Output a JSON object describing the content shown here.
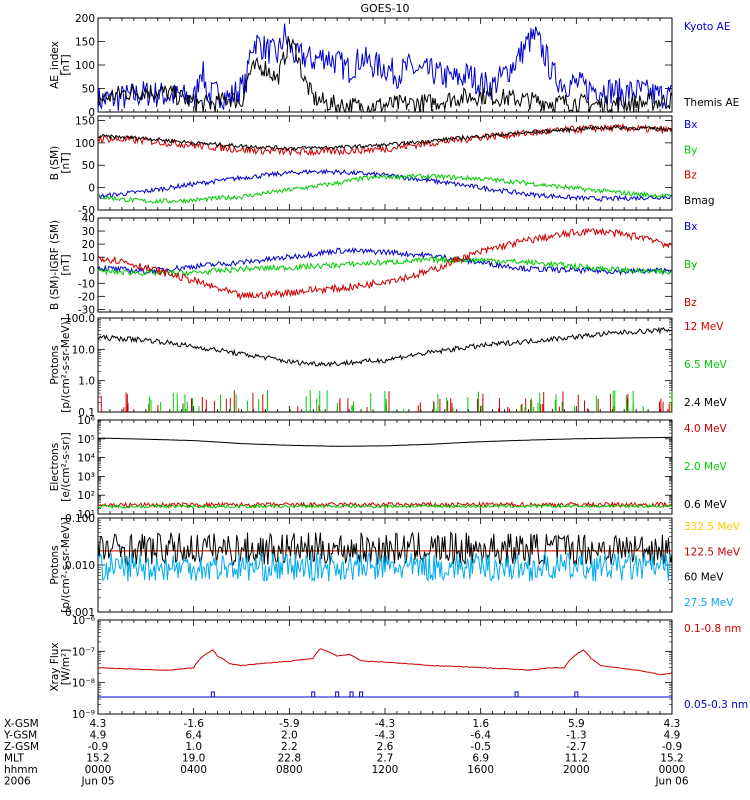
{
  "title": "GOES-10",
  "chart_data": [
    {
      "type": "line",
      "ylabel_lines": [
        "AE_index",
        "[nT]"
      ],
      "yscale": "linear",
      "ylim": [
        0,
        200
      ],
      "yticks": [
        0,
        50,
        100,
        150,
        200
      ],
      "xlim": [
        0,
        24
      ],
      "series": [
        {
          "name": "Kyoto AE",
          "color": "#0000cc",
          "noise": 3,
          "x": [
            0,
            1,
            2,
            3,
            4,
            4.1,
            4.3,
            4.6,
            5,
            5.5,
            6.2,
            6.4,
            6.6,
            7,
            7.5,
            7.8,
            8,
            8.3,
            8.5,
            9,
            9.5,
            10,
            10.5,
            11,
            11.5,
            12,
            12.5,
            13,
            13.5,
            14,
            14.5,
            15,
            15.5,
            16,
            16.5,
            17,
            17.5,
            18,
            18.3,
            18.5,
            18.8,
            19,
            19.5,
            20,
            20.5,
            21,
            21.5,
            22,
            22.5,
            23,
            23.5,
            24
          ],
          "y": [
            25,
            30,
            40,
            35,
            30,
            35,
            100,
            35,
            40,
            30,
            60,
            140,
            150,
            135,
            120,
            165,
            140,
            115,
            120,
            110,
            120,
            105,
            90,
            115,
            100,
            95,
            80,
            95,
            85,
            85,
            75,
            70,
            80,
            60,
            55,
            80,
            110,
            150,
            160,
            140,
            110,
            80,
            60,
            60,
            50,
            50,
            45,
            40,
            45,
            40,
            35,
            35
          ]
        },
        {
          "name": "Themis AE",
          "color": "#000000",
          "noise": 2,
          "x": [
            0,
            1,
            2,
            3,
            3.5,
            4,
            4.5,
            5,
            5.5,
            6,
            6.3,
            6.6,
            7,
            7.5,
            8,
            8.3,
            8.6,
            9,
            9.5,
            10,
            11,
            12,
            13,
            14,
            15,
            16,
            17,
            18,
            19,
            20,
            21,
            22,
            23,
            24
          ],
          "y": [
            25,
            40,
            45,
            40,
            30,
            20,
            15,
            20,
            30,
            20,
            80,
            95,
            95,
            70,
            150,
            130,
            70,
            30,
            20,
            15,
            12,
            15,
            18,
            20,
            30,
            35,
            30,
            25,
            20,
            20,
            15,
            18,
            20,
            25
          ]
        }
      ],
      "legend_placement": "right"
    },
    {
      "type": "line",
      "ylabel_lines": [
        "B (SM)",
        "[nT]"
      ],
      "yscale": "linear",
      "ylim": [
        -50,
        160
      ],
      "yticks": [
        -50,
        0,
        50,
        100,
        150
      ],
      "xlim": [
        0,
        24
      ],
      "series": [
        {
          "name": "Bx",
          "color": "#0000cc",
          "noise": 0.5,
          "x": [
            0,
            2,
            4,
            6,
            8,
            9,
            10,
            12,
            14,
            16,
            18,
            20,
            21,
            22,
            23,
            24
          ],
          "y": [
            -20,
            -8,
            8,
            22,
            33,
            36,
            35,
            28,
            15,
            0,
            -15,
            -23,
            -25,
            -24,
            -22,
            -20
          ]
        },
        {
          "name": "By",
          "color": "#00cc00",
          "noise": 0.5,
          "x": [
            0,
            1,
            2,
            3,
            4,
            6,
            8,
            10,
            11,
            12,
            13,
            14,
            16,
            18,
            20,
            22,
            23,
            24
          ],
          "y": [
            -20,
            -26,
            -30,
            -30,
            -28,
            -20,
            -5,
            10,
            20,
            24,
            25,
            25,
            20,
            10,
            -2,
            -12,
            -16,
            -20
          ]
        },
        {
          "name": "Bz",
          "color": "#cc0000",
          "noise": 0.8,
          "x": [
            0,
            2,
            4,
            6,
            8,
            9,
            10,
            12,
            14,
            16,
            18,
            20,
            21,
            22,
            24
          ],
          "y": [
            110,
            105,
            95,
            85,
            80,
            80,
            81,
            87,
            100,
            113,
            122,
            130,
            133,
            133,
            128
          ]
        },
        {
          "name": "Bmag",
          "color": "#000000",
          "noise": 0.4,
          "x": [
            0,
            2,
            4,
            6,
            8,
            9,
            10,
            12,
            14,
            16,
            18,
            20,
            21,
            22,
            24
          ],
          "y": [
            115,
            110,
            100,
            93,
            88,
            89,
            90,
            95,
            105,
            115,
            123,
            131,
            134,
            134,
            130
          ]
        }
      ],
      "legend_placement": "right"
    },
    {
      "type": "line",
      "ylabel_lines": [
        "B (SM)-IGRF (SM)",
        "[nT]"
      ],
      "yscale": "linear",
      "ylim": [
        -32,
        40
      ],
      "yticks": [
        -30,
        -20,
        -10,
        0,
        10,
        20,
        30,
        40
      ],
      "xlim": [
        0,
        24
      ],
      "series": [
        {
          "name": "Bx",
          "color": "#0000cc",
          "noise": 0.6,
          "x": [
            0,
            2,
            4,
            6,
            8,
            10,
            12,
            14,
            16,
            18,
            20,
            22,
            24
          ],
          "y": [
            2,
            -1,
            3,
            6,
            10,
            15,
            14,
            11,
            6,
            1,
            0,
            -1,
            0
          ]
        },
        {
          "name": "By",
          "color": "#00cc00",
          "noise": 0.6,
          "x": [
            0,
            2,
            4,
            6,
            8,
            10,
            12,
            14,
            16,
            18,
            20,
            22,
            24
          ],
          "y": [
            -1,
            -2,
            -2,
            1,
            2,
            4,
            6,
            8,
            8,
            6,
            3,
            0,
            -2
          ]
        },
        {
          "name": "Bz",
          "color": "#cc0000",
          "noise": 0.8,
          "x": [
            0,
            1,
            2,
            3,
            4,
            5,
            6,
            7,
            8,
            9,
            10,
            11,
            12,
            13,
            14,
            15,
            16,
            17,
            18,
            19,
            20,
            21,
            22,
            23,
            23.5,
            24
          ],
          "y": [
            10,
            7,
            2,
            -3,
            -8,
            -14,
            -20,
            -19,
            -17,
            -15,
            -14,
            -12,
            -8,
            -5,
            0,
            8,
            14,
            19,
            23,
            26,
            29,
            30,
            27,
            25,
            22,
            17
          ]
        }
      ],
      "legend_placement": "right"
    },
    {
      "type": "line",
      "ylabel_lines": [
        "Protons",
        "[p/(cm²-s-sr-MeV)]"
      ],
      "yscale": "log",
      "ylim": [
        0.1,
        100
      ],
      "yticks": [
        0.1,
        1.0,
        10.0,
        100.0
      ],
      "ytick_labels": [
        "0.1",
        "1.0",
        "10.0",
        "100.0"
      ],
      "xlim": [
        0,
        24
      ],
      "series": [
        {
          "name": "12 MeV",
          "color": "#cc0000",
          "noise": 0,
          "style": "spikes",
          "x": [
            0,
            24
          ],
          "y": [
            0.1,
            0.1
          ]
        },
        {
          "name": "6.5 MeV",
          "color": "#00cc00",
          "noise": 0,
          "style": "spikes",
          "x": [
            0,
            24
          ],
          "y": [
            0.1,
            0.1
          ]
        },
        {
          "name": "2.4 MeV",
          "color": "#000000",
          "noise": 0.08,
          "log_noise": true,
          "x": [
            0,
            2,
            4,
            6,
            8,
            9,
            10,
            12,
            14,
            16,
            18,
            20,
            22,
            24
          ],
          "y": [
            24,
            20,
            12,
            7,
            4,
            3.5,
            3.5,
            4.5,
            8,
            13,
            18,
            25,
            35,
            42
          ]
        }
      ],
      "legend_placement": "right"
    },
    {
      "type": "line",
      "ylabel_lines": [
        "Electrons",
        "[e/(cm²-s-sr)]"
      ],
      "yscale": "log",
      "ylim": [
        10,
        1000000
      ],
      "yticks": [
        10,
        100,
        1000,
        10000,
        100000,
        1000000
      ],
      "ytick_labels": [
        "10¹",
        "10²",
        "10³",
        "10⁴",
        "10⁵",
        "10⁶"
      ],
      "xlim": [
        0,
        24
      ],
      "series": [
        {
          "name": "4.0 MeV",
          "color": "#cc0000",
          "noise": 0.12,
          "log_noise": true,
          "x": [
            0,
            24
          ],
          "y": [
            30,
            32
          ]
        },
        {
          "name": "2.0 MeV",
          "color": "#00cc00",
          "noise": 0.08,
          "log_noise": true,
          "x": [
            0,
            24
          ],
          "y": [
            25,
            26
          ]
        },
        {
          "name": "0.6 MeV",
          "color": "#000000",
          "noise": 0.005,
          "log_noise": true,
          "x": [
            0,
            2,
            4,
            6,
            8,
            10,
            12,
            14,
            16,
            18,
            20,
            22,
            24
          ],
          "y": [
            110000,
            95000,
            80000,
            55000,
            45000,
            40000,
            42000,
            52000,
            70000,
            85000,
            100000,
            110000,
            120000
          ]
        }
      ],
      "legend_placement": "right"
    },
    {
      "type": "line",
      "ylabel_lines": [
        "Protons",
        "[p/(cm²-s-sr-MeV)]"
      ],
      "yscale": "log",
      "ylim": [
        0.001,
        0.1
      ],
      "yticks": [
        0.001,
        0.01,
        0.1
      ],
      "ytick_labels": [
        "0.001",
        "0.010",
        "0.100"
      ],
      "xlim": [
        0,
        24
      ],
      "series": [
        {
          "name": "332.5 MeV",
          "color": "#ffcc00",
          "noise": 0,
          "x": [
            0,
            24
          ],
          "y": [
            0.02,
            0.02
          ]
        },
        {
          "name": "122.5 MeV",
          "color": "#cc0000",
          "noise": 0,
          "x": [
            0,
            24
          ],
          "y": [
            0.02,
            0.02
          ]
        },
        {
          "name": "60 MeV",
          "color": "#000000",
          "noise": 0.35,
          "log_noise": true,
          "x": [
            0,
            24
          ],
          "y": [
            0.022,
            0.022
          ]
        },
        {
          "name": "27.5 MeV",
          "color": "#00aaee",
          "noise": 0.3,
          "log_noise": true,
          "x": [
            0,
            24
          ],
          "y": [
            0.009,
            0.009
          ]
        }
      ],
      "legend_placement": "right"
    },
    {
      "type": "line",
      "ylabel_lines": [
        "Xray  Flux",
        "[W/m²]"
      ],
      "yscale": "log",
      "ylim": [
        1e-09,
        1e-06
      ],
      "yticks": [
        1e-09,
        1e-08,
        1e-07,
        1e-06
      ],
      "ytick_labels": [
        "10⁻⁹",
        "10⁻⁸",
        "10⁻⁷",
        "10⁻⁶"
      ],
      "xlim": [
        0,
        24
      ],
      "series": [
        {
          "name": "0.1-0.8 nm",
          "color": "#cc0000",
          "noise": 0.01,
          "log_noise": true,
          "x": [
            0,
            1,
            2,
            3,
            4,
            4.5,
            4.8,
            5,
            5.5,
            6,
            7,
            8,
            9,
            9.3,
            9.6,
            10,
            10.5,
            11,
            12,
            13,
            14,
            15,
            16,
            17,
            18,
            19,
            19.5,
            20,
            20.3,
            20.6,
            21,
            22,
            23,
            23.5,
            24
          ],
          "y": [
            3e-08,
            2.8e-08,
            2.6e-08,
            2.5e-08,
            3e-08,
            8e-08,
            1.1e-07,
            7e-08,
            4e-08,
            3.5e-08,
            4.2e-08,
            4.8e-08,
            6e-08,
            1.2e-07,
            1e-07,
            7e-08,
            8e-08,
            5e-08,
            4.5e-08,
            4e-08,
            3.5e-08,
            3.3e-08,
            3e-08,
            2.8e-08,
            2.5e-08,
            3e-08,
            3e-08,
            8e-08,
            1.1e-07,
            6e-08,
            3.5e-08,
            2.8e-08,
            2.2e-08,
            1.8e-08,
            2e-08
          ]
        },
        {
          "name": "0.05-0.3 nm",
          "color": "#0000cc",
          "noise": 0,
          "style": "flat_with_bumps",
          "x": [
            0,
            24
          ],
          "y": [
            3.5e-09,
            3.5e-09
          ],
          "bumps": [
            4.8,
            9.0,
            10.0,
            10.6,
            11.0,
            17.5,
            20.0
          ]
        }
      ],
      "legend_placement": "right"
    }
  ],
  "x_axis": {
    "xlim": [
      0,
      24
    ],
    "ticks": [
      0,
      4,
      8,
      12,
      16,
      20,
      24
    ],
    "minor_tick_step": 0.5,
    "rows": [
      {
        "label": "X-GSM",
        "values": [
          "4.3",
          "-1.6",
          "-5.9",
          "-4.3",
          "1.6",
          "5.9",
          "4.3"
        ]
      },
      {
        "label": "Y-GSM",
        "values": [
          "4.9",
          "6.4",
          "2.0",
          "-4.3",
          "-6.4",
          "-1.3",
          "4.9"
        ]
      },
      {
        "label": "Z-GSM",
        "values": [
          "-0.9",
          "1.0",
          "2.2",
          "2.6",
          "-0.5",
          "-2.7",
          "-0.9"
        ]
      },
      {
        "label": "MLT",
        "values": [
          "15.2",
          "19.0",
          "22.8",
          "2.7",
          "6.9",
          "11.2",
          "15.2"
        ]
      },
      {
        "label": "hhmm",
        "values": [
          "0000",
          "0400",
          "0800",
          "1200",
          "1600",
          "2000",
          "0000"
        ]
      },
      {
        "label": "2006",
        "values": [
          "Jun 05",
          "",
          "",
          "",
          "",
          "",
          "Jun 06"
        ]
      }
    ]
  }
}
